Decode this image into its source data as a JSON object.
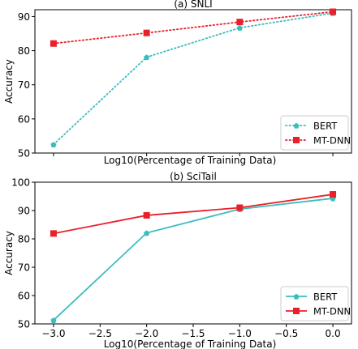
{
  "chart_data": [
    {
      "type": "line",
      "title": "(a) SNLI",
      "xlabel": "Log10(Percentage of Training Data)",
      "ylabel": "Accuracy",
      "x": [
        -3.0,
        -2.0,
        -1.0,
        0.0
      ],
      "xlim": [
        -3.2,
        0.2
      ],
      "ylim": [
        50,
        92
      ],
      "yticks": [
        50,
        60,
        70,
        80,
        90
      ],
      "yticklabels": [
        "50",
        "60",
        "70",
        "80",
        "90"
      ],
      "xticks_shown": false,
      "legend_position": "lower-right",
      "series": [
        {
          "name": "BERT",
          "values": [
            52.5,
            78.1,
            86.7,
            91.0
          ],
          "color": "#3bbdbd",
          "line_style": "dotted",
          "marker": "pentagon"
        },
        {
          "name": "MT-DNN",
          "values": [
            82.1,
            85.2,
            88.4,
            91.4
          ],
          "color": "#e8202a",
          "line_style": "dotted",
          "marker": "square"
        }
      ]
    },
    {
      "type": "line",
      "title": "(b) SciTail",
      "xlabel": "Log10(Percentage of Training Data)",
      "ylabel": "Accuracy",
      "x": [
        -3.0,
        -2.0,
        -1.0,
        0.0
      ],
      "xlim": [
        -3.2,
        0.2
      ],
      "ylim": [
        50,
        100
      ],
      "yticks": [
        50,
        60,
        70,
        80,
        90,
        100
      ],
      "yticklabels": [
        "50",
        "60",
        "70",
        "80",
        "90",
        "100"
      ],
      "xticks": [
        -3.0,
        -2.5,
        -2.0,
        -1.5,
        -1.0,
        -0.5,
        0.0
      ],
      "xticklabels": [
        "−3.0",
        "−2.5",
        "−2.0",
        "−1.5",
        "−1.0",
        "−0.5",
        "0.0"
      ],
      "xticks_shown": true,
      "legend_position": "lower-right",
      "series": [
        {
          "name": "BERT",
          "values": [
            51.3,
            82.1,
            90.5,
            94.3
          ],
          "color": "#3bbdbd",
          "line_style": "solid",
          "marker": "pentagon"
        },
        {
          "name": "MT-DNN",
          "values": [
            81.9,
            88.3,
            91.0,
            95.7
          ],
          "color": "#e8202a",
          "line_style": "solid",
          "marker": "square"
        }
      ]
    }
  ]
}
